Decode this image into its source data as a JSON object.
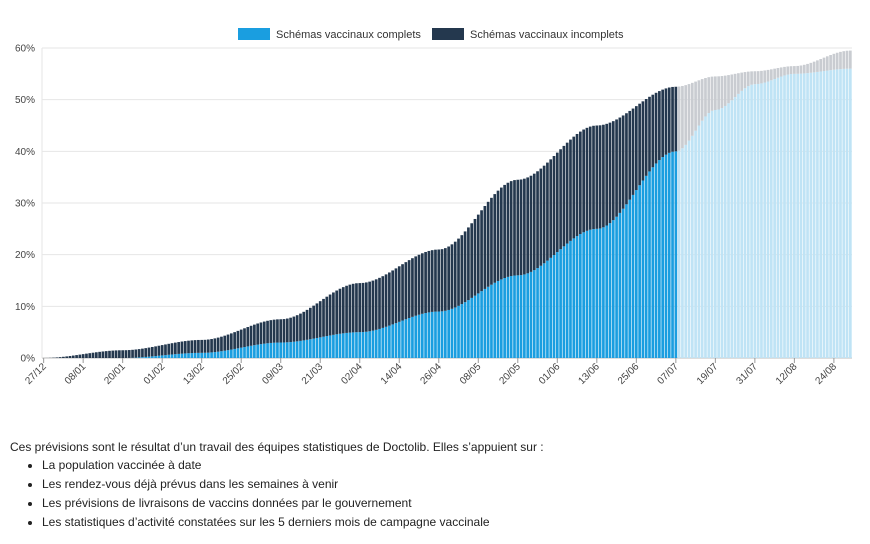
{
  "chart_data": {
    "type": "bar",
    "stacked": true,
    "ylim": [
      0,
      60
    ],
    "y_ticks": [
      "0%",
      "10%",
      "20%",
      "30%",
      "40%",
      "50%",
      "60%"
    ],
    "x_tick_labels": [
      "27/12",
      "08/01",
      "20/01",
      "01/02",
      "13/02",
      "25/02",
      "09/03",
      "21/03",
      "02/04",
      "14/04",
      "26/04",
      "08/05",
      "20/05",
      "01/06",
      "13/06",
      "25/06",
      "07/07",
      "19/07",
      "31/07",
      "12/08",
      "24/08"
    ],
    "legend": [
      "Schémas vaccinaux complets",
      "Schémas vaccinaux incomplets"
    ],
    "grid": true,
    "legend_position": "top-center",
    "colors": {
      "complete": "#1a9ee0",
      "incomplete": "#24384e",
      "forecast_complete": "#bfe3f5",
      "forecast_incomplete": "#c9ccd1"
    },
    "observed_end_label": "07/07",
    "series": [
      {
        "name": "Schémas vaccinaux complets",
        "anchors_label": [
          "27/12",
          "20/01",
          "13/02",
          "09/03",
          "02/04",
          "26/04",
          "20/05",
          "13/06",
          "07/07",
          "19/07",
          "31/07",
          "12/08",
          "29/08"
        ],
        "values": [
          0,
          0,
          1,
          3,
          5,
          9,
          16,
          25,
          40,
          48,
          53,
          55,
          56
        ]
      },
      {
        "name": "Schémas vaccinaux incomplets",
        "anchors_label": [
          "27/12",
          "20/01",
          "13/02",
          "09/03",
          "02/04",
          "26/04",
          "20/05",
          "13/06",
          "07/07",
          "19/07",
          "31/07",
          "12/08",
          "29/08"
        ],
        "values": [
          0,
          1.5,
          2.5,
          4.5,
          9.5,
          12,
          18.5,
          20,
          12.5,
          6.5,
          2.5,
          1.5,
          3.5
        ]
      }
    ]
  },
  "notes": {
    "intro": "Ces prévisions sont le résultat d’un travail des équipes statistiques de Doctolib. Elles s’appuient sur :",
    "items": [
      "La population vaccinée à date",
      "Les rendez-vous déjà prévus dans les semaines à venir",
      "Les prévisions de livraisons de vaccins données par le gouvernement",
      "Les statistiques d’activité constatées sur les 5 derniers mois de campagne vaccinale"
    ]
  }
}
